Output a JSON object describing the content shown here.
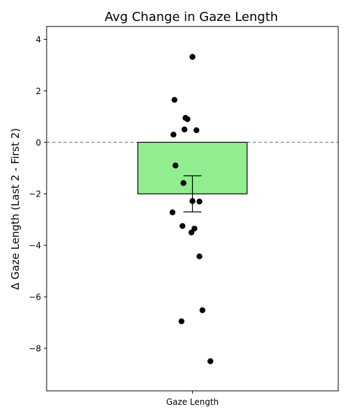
{
  "chart_data": {
    "type": "bar",
    "title": "Avg Change in Gaze Length",
    "xlabel": "",
    "ylabel": "Δ Gaze Length (Last 2 - First 2)",
    "categories": [
      "Gaze Length"
    ],
    "ylim": [
      -9.65,
      4.5
    ],
    "yticks": [
      4,
      2,
      0,
      -2,
      -4,
      -6,
      -8
    ],
    "ytick_labels": [
      "4",
      "2",
      "0",
      "−2",
      "−4",
      "−6",
      "−8"
    ],
    "grid": false,
    "bar": {
      "value": -2.0,
      "error": 0.7,
      "color": "#90ee90",
      "edgecolor": "#000000"
    },
    "reference_line": {
      "y": 0,
      "color": "#808080",
      "style": "dashed"
    },
    "points": {
      "color": "#000000",
      "values": [
        {
          "x": 0.0,
          "y": 3.32
        },
        {
          "x": -0.18,
          "y": 1.65
        },
        {
          "x": -0.07,
          "y": 0.95
        },
        {
          "x": -0.05,
          "y": 0.9
        },
        {
          "x": -0.08,
          "y": 0.5
        },
        {
          "x": 0.04,
          "y": 0.47
        },
        {
          "x": -0.19,
          "y": 0.3
        },
        {
          "x": -0.17,
          "y": -0.9
        },
        {
          "x": -0.09,
          "y": -1.58
        },
        {
          "x": 0.0,
          "y": -2.28
        },
        {
          "x": 0.07,
          "y": -2.3
        },
        {
          "x": -0.2,
          "y": -2.72
        },
        {
          "x": -0.1,
          "y": -3.25
        },
        {
          "x": 0.02,
          "y": -3.35
        },
        {
          "x": -0.01,
          "y": -3.5
        },
        {
          "x": 0.07,
          "y": -4.43
        },
        {
          "x": 0.1,
          "y": -6.52
        },
        {
          "x": -0.11,
          "y": -6.95
        },
        {
          "x": 0.18,
          "y": -8.5
        }
      ]
    }
  }
}
